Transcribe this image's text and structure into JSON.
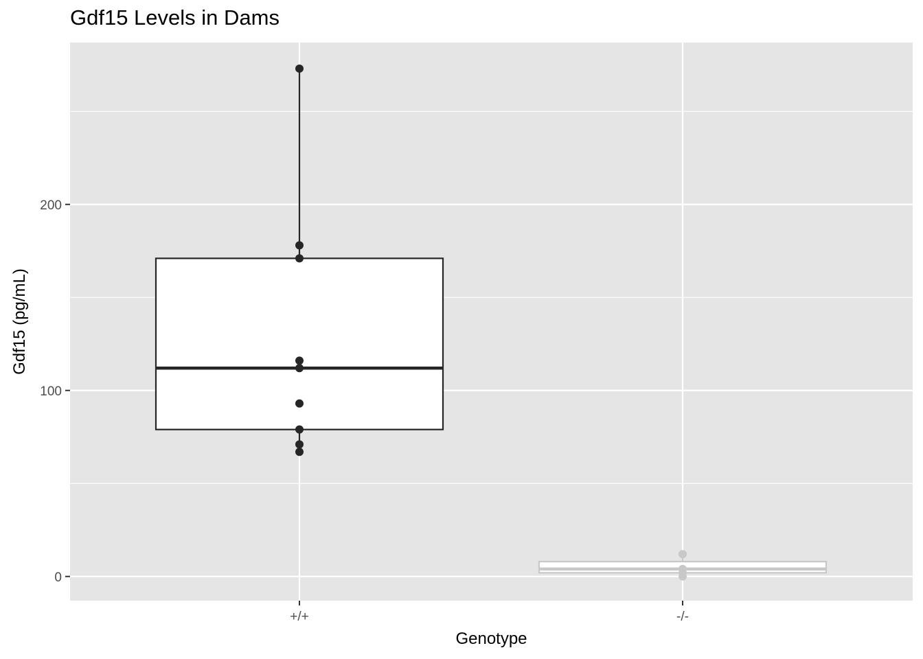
{
  "chart_data": {
    "type": "boxplot",
    "title": "Gdf15 Levels in Dams",
    "xlabel": "Genotype",
    "ylabel": "Gdf15 (pg/mL)",
    "categories": [
      "+/+",
      "-/-"
    ],
    "ylim": [
      -13,
      287
    ],
    "y_ticks": [
      0,
      100,
      200
    ],
    "grid": true,
    "background_color": "#e5e5e5",
    "boxes": [
      {
        "category": "+/+",
        "color": "#262626",
        "q1": 79,
        "median": 112,
        "q3": 171,
        "whisker_low": 67,
        "whisker_high": 273,
        "points": [
          273,
          178,
          171,
          116,
          112,
          93,
          79,
          71,
          67
        ]
      },
      {
        "category": "-/-",
        "color": "#c8c8c8",
        "q1": 2,
        "median": 4,
        "q3": 8,
        "whisker_low": 0,
        "whisker_high": 12,
        "points": [
          12,
          4,
          2,
          0
        ]
      }
    ]
  }
}
